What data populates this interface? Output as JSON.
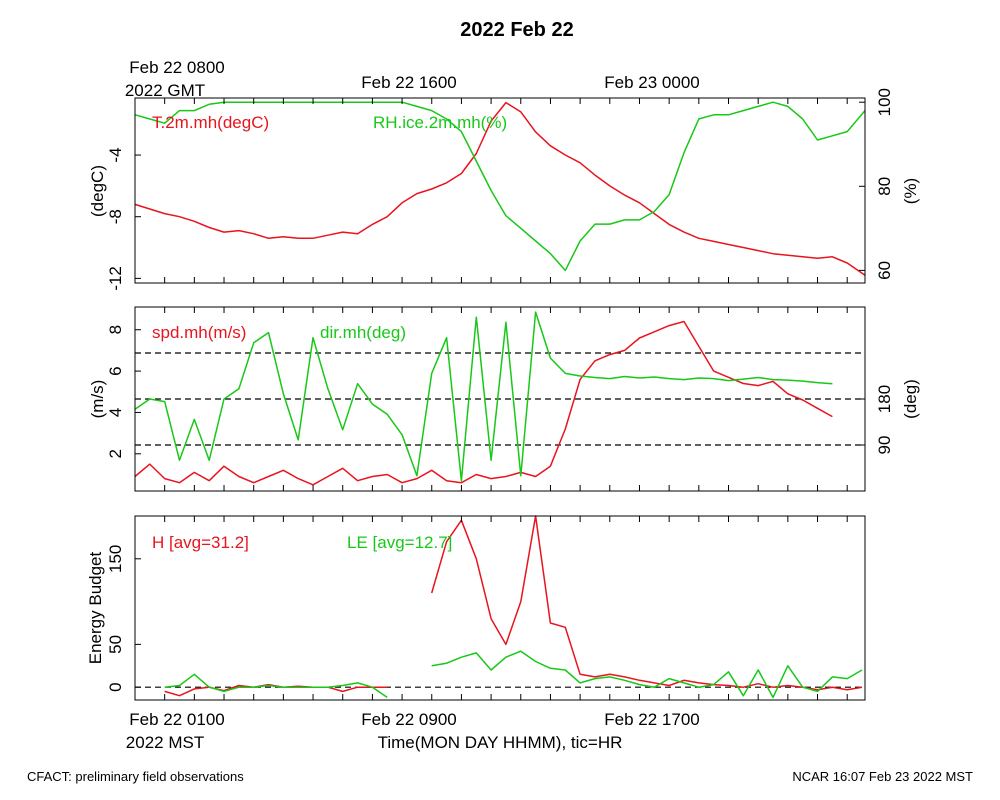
{
  "title": "2022 Feb 22",
  "colors": {
    "red": "#e8141e",
    "green": "#18c818",
    "axis": "#000000"
  },
  "top_time_axis": {
    "tick_labels": [
      "Feb 22 0800",
      "Feb 22 1600",
      "Feb 23 0000"
    ],
    "zone_label": "2022 GMT"
  },
  "bottom_time_axis": {
    "tick_labels": [
      "Feb 22 0100",
      "Feb 22 0900",
      "Feb 22 1700"
    ],
    "zone_label": "2022 MST",
    "xlabel": "Time(MON DAY HHMM), tic=HR"
  },
  "footer": {
    "left": "CFACT: preliminary field observations",
    "right": "NCAR 16:07 Feb 23 2022 MST"
  },
  "chart_data": [
    {
      "type": "line",
      "panel": "temperature-humidity",
      "x_unit": "hours after Feb 22 0000 MST",
      "xlim": [
        0,
        24.6
      ],
      "ylabel": "(degC)",
      "ylim": [
        -12.3,
        -0.3
      ],
      "yticks": [
        -12,
        -8,
        -4
      ],
      "ylabel_right": "(%)",
      "ylim_right": [
        57,
        101
      ],
      "yticks_right": [
        60,
        80,
        100
      ],
      "legend": [
        "T.2m.mh(degC)",
        "RH.ice.2m.mh(%)"
      ],
      "series": [
        {
          "name": "T.2m.mh(degC)",
          "color": "red",
          "axis": "left",
          "x": [
            0,
            0.5,
            1,
            1.5,
            2,
            2.5,
            3,
            3.5,
            4,
            4.5,
            5,
            5.5,
            6,
            6.5,
            7,
            7.5,
            8,
            8.5,
            9,
            9.5,
            10,
            10.5,
            11,
            11.5,
            12,
            12.5,
            13,
            13.5,
            14,
            14.5,
            15,
            15.5,
            16,
            16.5,
            17,
            17.5,
            18,
            18.5,
            19,
            19.5,
            20,
            20.5,
            21,
            21.5,
            22,
            22.5,
            23,
            23.5,
            24,
            24.6
          ],
          "values": [
            -7.2,
            -7.5,
            -7.8,
            -8.0,
            -8.3,
            -8.7,
            -9.0,
            -8.9,
            -9.1,
            -9.4,
            -9.3,
            -9.4,
            -9.4,
            -9.2,
            -9.0,
            -9.1,
            -8.5,
            -8.0,
            -7.1,
            -6.5,
            -6.2,
            -5.8,
            -5.2,
            -3.9,
            -1.8,
            -0.6,
            -1.2,
            -2.5,
            -3.4,
            -4.0,
            -4.5,
            -5.3,
            -6.0,
            -6.6,
            -7.1,
            -7.8,
            -8.5,
            -9.0,
            -9.4,
            -9.6,
            -9.8,
            -10.0,
            -10.2,
            -10.4,
            -10.5,
            -10.6,
            -10.7,
            -10.6,
            -11.0,
            -11.8
          ]
        },
        {
          "name": "RH.ice.2m.mh(%)",
          "color": "green",
          "axis": "right",
          "x": [
            0,
            0.5,
            1,
            1.5,
            2,
            2.5,
            3,
            3.5,
            4,
            4.5,
            5,
            5.5,
            6,
            6.5,
            7,
            7.5,
            8,
            8.5,
            9,
            9.5,
            10,
            10.5,
            11,
            11.5,
            12,
            12.5,
            13,
            13.5,
            14,
            14.5,
            15,
            15.5,
            16,
            16.5,
            17,
            17.5,
            18,
            18.5,
            19,
            19.5,
            20,
            20.5,
            21,
            21.5,
            22,
            22.5,
            23,
            23.5,
            24,
            24.6
          ],
          "values": [
            97,
            96,
            95,
            98,
            98,
            99.5,
            100,
            100,
            100,
            100,
            100,
            100,
            100,
            100,
            100,
            100,
            100,
            100,
            100,
            99,
            98,
            96,
            93,
            86,
            79,
            73,
            70,
            67,
            64,
            60,
            67,
            71,
            71,
            72,
            72,
            74,
            78,
            88,
            96,
            97,
            97,
            98,
            99,
            100,
            99,
            96,
            91,
            92,
            93,
            98
          ]
        }
      ]
    },
    {
      "type": "line",
      "panel": "wind",
      "x_unit": "hours after Feb 22 0000 MST",
      "xlim": [
        0,
        24.6
      ],
      "ylabel": "(m/s)",
      "ylim": [
        0.2,
        9.1
      ],
      "yticks": [
        2,
        4,
        6,
        8
      ],
      "ylabel_right": "(deg)",
      "ylim_right": [
        0,
        360
      ],
      "yticks_right": [
        90,
        180
      ],
      "reference_lines_right": [
        90,
        180,
        270
      ],
      "legend": [
        "spd.mh(m/s)",
        "dir.mh(deg)"
      ],
      "series": [
        {
          "name": "spd.mh(m/s)",
          "color": "red",
          "axis": "left",
          "x": [
            0,
            0.5,
            1,
            1.5,
            2,
            2.5,
            3,
            3.5,
            4,
            4.5,
            5,
            5.5,
            6,
            6.5,
            7,
            7.5,
            8,
            8.5,
            9,
            9.5,
            10,
            10.5,
            11,
            11.5,
            12,
            12.5,
            13,
            13.5,
            14,
            14.5,
            15,
            15.5,
            16,
            16.5,
            17,
            17.5,
            18,
            18.5,
            19,
            19.5,
            20,
            20.5,
            21,
            21.5,
            22,
            22.5,
            23,
            23.5
          ],
          "values": [
            0.9,
            1.5,
            0.8,
            0.6,
            1.1,
            0.7,
            1.4,
            0.9,
            0.6,
            0.9,
            1.2,
            0.8,
            0.5,
            0.9,
            1.3,
            0.7,
            0.9,
            1.0,
            0.6,
            0.8,
            1.2,
            0.7,
            0.6,
            1.0,
            0.8,
            0.9,
            1.1,
            0.9,
            1.4,
            3.2,
            5.6,
            6.5,
            6.8,
            7.0,
            7.6,
            7.9,
            8.2,
            8.4,
            7.2,
            6.0,
            5.7,
            5.4,
            5.3,
            5.5,
            4.9,
            4.6,
            4.2,
            3.8
          ]
        },
        {
          "name": "dir.mh(deg)",
          "color": "green",
          "axis": "right",
          "x": [
            0,
            0.5,
            1,
            1.5,
            2,
            2.5,
            3,
            3.5,
            4,
            4.5,
            5,
            5.5,
            6,
            6.5,
            7,
            7.5,
            8,
            8.5,
            9,
            9.5,
            10,
            10.5,
            11,
            11.5,
            12,
            12.5,
            13,
            13.5,
            14,
            14.5,
            15,
            15.5,
            16,
            16.5,
            17,
            17.5,
            18,
            18.5,
            19,
            19.5,
            20,
            20.5,
            21,
            21.5,
            22,
            22.5,
            23,
            23.5
          ],
          "values": [
            160,
            180,
            175,
            60,
            140,
            60,
            180,
            200,
            290,
            310,
            190,
            100,
            300,
            200,
            120,
            210,
            170,
            150,
            110,
            30,
            230,
            300,
            20,
            340,
            60,
            330,
            30,
            350,
            260,
            230,
            225,
            222,
            220,
            224,
            221,
            223,
            220,
            218,
            221,
            220,
            216,
            219,
            222,
            218,
            217,
            215,
            212,
            210
          ]
        }
      ]
    },
    {
      "type": "line",
      "panel": "energy-budget",
      "x_unit": "hours after Feb 22 0000 MST",
      "xlim": [
        0,
        24.6
      ],
      "ylabel": "Energy Budget",
      "ylim": [
        -15,
        200
      ],
      "yticks": [
        0,
        50,
        150
      ],
      "reference_lines": [
        0
      ],
      "legend": [
        "H [avg=31.2]",
        "LE [avg=12.7]"
      ],
      "series": [
        {
          "name": "H [avg=31.2]",
          "color": "red",
          "axis": "left",
          "segments": [
            {
              "x": [
                1,
                1.5,
                2,
                2.5,
                3,
                3.5,
                4,
                4.5,
                5,
                5.5,
                6,
                6.5,
                7,
                7.5,
                8,
                8.5
              ],
              "values": [
                -5,
                -10,
                -2,
                0,
                -4,
                2,
                0,
                3,
                0,
                1,
                0,
                0,
                -5,
                0,
                0,
                0
              ]
            },
            {
              "x": [
                10,
                10.5,
                11,
                11.5,
                12,
                12.5,
                13,
                13.5,
                14,
                14.5,
                15,
                15.5,
                16,
                16.5,
                17,
                17.5,
                18,
                18.5,
                19,
                19.5,
                20,
                20.5,
                21,
                21.5,
                22,
                22.5,
                23,
                23.5,
                24,
                24.5
              ],
              "values": [
                110,
                170,
                195,
                150,
                80,
                50,
                100,
                200,
                75,
                70,
                15,
                12,
                15,
                12,
                8,
                5,
                2,
                8,
                5,
                3,
                2,
                0,
                4,
                0,
                2,
                0,
                -3,
                0,
                -3,
                0
              ]
            }
          ]
        },
        {
          "name": "LE [avg=12.7]",
          "color": "green",
          "axis": "left",
          "segments": [
            {
              "x": [
                1,
                1.5,
                2,
                2.5,
                3,
                3.5,
                4,
                4.5,
                5,
                5.5,
                6,
                6.5,
                7,
                7.5,
                8,
                8.5
              ],
              "values": [
                0,
                2,
                15,
                0,
                -5,
                0,
                0,
                2,
                0,
                0,
                0,
                0,
                2,
                5,
                0,
                -12
              ]
            },
            {
              "x": [
                10,
                10.5,
                11,
                11.5,
                12,
                12.5,
                13,
                13.5,
                14,
                14.5,
                15,
                15.5,
                16,
                16.5,
                17,
                17.5,
                18,
                18.5,
                19,
                19.5,
                20,
                20.5,
                21,
                21.5,
                22,
                22.5,
                23,
                23.5,
                24,
                24.5
              ],
              "values": [
                25,
                28,
                35,
                40,
                20,
                35,
                42,
                30,
                22,
                20,
                5,
                10,
                12,
                8,
                3,
                0,
                10,
                5,
                0,
                3,
                18,
                -10,
                20,
                -12,
                25,
                0,
                -5,
                12,
                10,
                20
              ]
            }
          ]
        }
      ]
    }
  ]
}
